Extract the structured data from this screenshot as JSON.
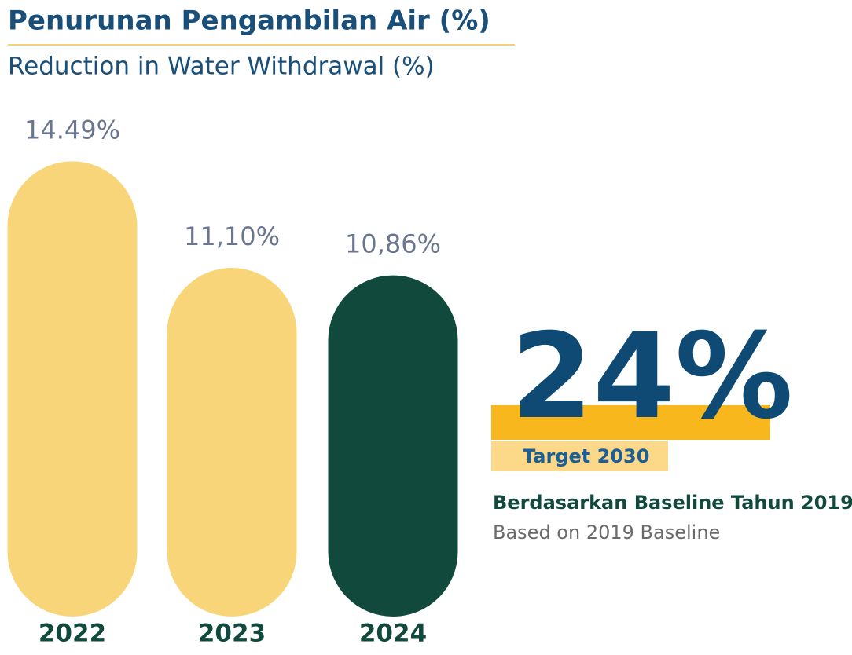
{
  "chart_data": {
    "type": "bar",
    "title": "Penurunan Pengambilan Air (%)",
    "subtitle": "Reduction in Water Withdrawal (%)",
    "categories": [
      "2022",
      "2023",
      "2024"
    ],
    "values": [
      14.49,
      11.1,
      10.86
    ],
    "value_labels": [
      "14.49%",
      "11,10%",
      "10,86%"
    ],
    "colors": [
      "#f9d57a",
      "#f9d57a",
      "#12493d"
    ],
    "annotations": [
      "24%",
      "Target 2030",
      "Berdasarkan Baseline Tahun 2019",
      "Based on 2019 Baseline"
    ]
  }
}
